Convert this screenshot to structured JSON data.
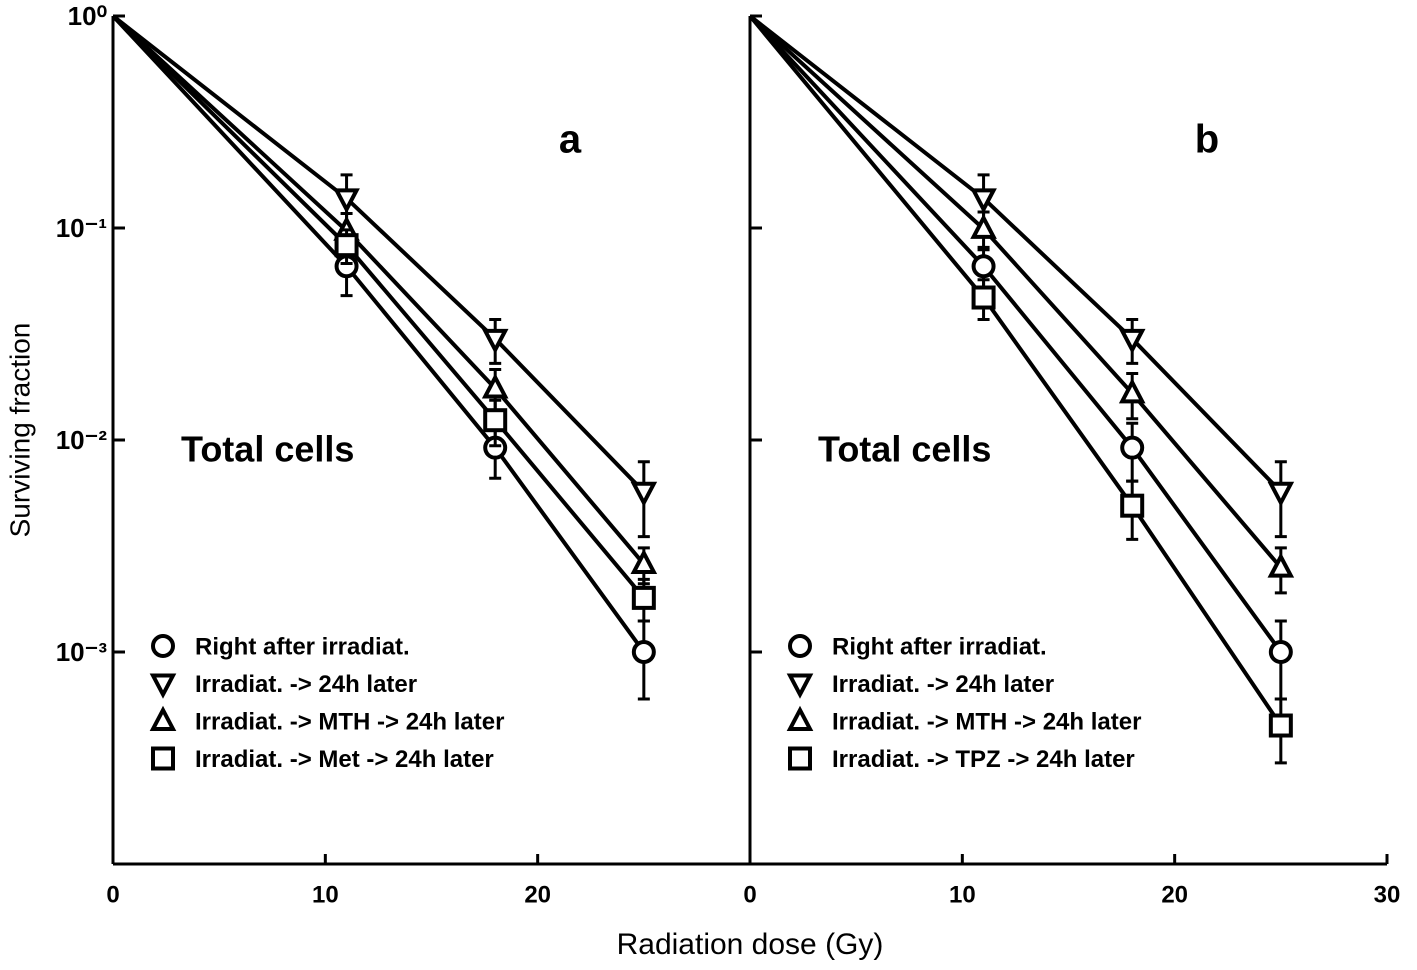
{
  "chart_data": [
    {
      "type": "line",
      "panel_label": "a",
      "annotation": "Total cells",
      "ylabel": "Surviving fraction",
      "xlabel": "Radiation dose (Gy)",
      "log_y": true,
      "xlim": [
        0,
        30
      ],
      "ylim": [
        0.0001,
        1
      ],
      "xticks": [
        0,
        10,
        20
      ],
      "yticks": [
        {
          "value": 1,
          "label": "10⁰"
        },
        {
          "value": 0.1,
          "label": "10⁻¹"
        },
        {
          "value": 0.01,
          "label": "10⁻²"
        },
        {
          "value": 0.001,
          "label": "10⁻³"
        }
      ],
      "x": [
        0,
        11,
        18,
        25
      ],
      "series": [
        {
          "name": "Right after irradiat.",
          "marker": "circle",
          "color": "#000000",
          "values": [
            1,
            0.066,
            0.0092,
            0.001
          ],
          "errors": [
            null,
            0.018,
            0.0026,
            0.0004
          ]
        },
        {
          "name": "Irradiat. -> 24h later",
          "marker": "triangle-down",
          "color": "#000000",
          "values": [
            1,
            0.138,
            0.03,
            0.0057
          ],
          "errors": [
            null,
            0.04,
            0.007,
            0.0022
          ]
        },
        {
          "name": "Irradiat. -> MTH -> 24h later",
          "marker": "triangle-up",
          "color": "#000000",
          "values": [
            1,
            0.097,
            0.0175,
            0.0026
          ],
          "errors": [
            null,
            0.02,
            0.004,
            0.0005
          ]
        },
        {
          "name": "Irradiat. -> Met -> 24h later",
          "marker": "square",
          "color": "#000000",
          "values": [
            1,
            0.083,
            0.0124,
            0.0018
          ],
          "errors": [
            null,
            0.015,
            0.003,
            0.0004
          ]
        }
      ]
    },
    {
      "type": "line",
      "panel_label": "b",
      "annotation": "Total cells",
      "log_y": true,
      "xlim": [
        0,
        30
      ],
      "ylim": [
        0.0001,
        1
      ],
      "xticks": [
        0,
        10,
        20,
        30
      ],
      "x": [
        0,
        11,
        18,
        25
      ],
      "series": [
        {
          "name": "Right after irradiat.",
          "marker": "circle",
          "color": "#000000",
          "values": [
            1,
            0.066,
            0.0092,
            0.001
          ],
          "errors": [
            null,
            0.015,
            0.0028,
            0.0004
          ]
        },
        {
          "name": "Irradiat. -> 24h later",
          "marker": "triangle-down",
          "color": "#000000",
          "values": [
            1,
            0.138,
            0.03,
            0.0057
          ],
          "errors": [
            null,
            0.04,
            0.007,
            0.0022
          ]
        },
        {
          "name": "Irradiat. -> MTH -> 24h later",
          "marker": "triangle-up",
          "color": "#000000",
          "values": [
            1,
            0.099,
            0.0166,
            0.0025
          ],
          "errors": [
            null,
            0.02,
            0.004,
            0.0006
          ]
        },
        {
          "name": "Irradiat. -> TPZ -> 24h later",
          "marker": "square",
          "color": "#000000",
          "values": [
            1,
            0.047,
            0.0049,
            0.00045
          ],
          "errors": [
            null,
            0.01,
            0.0015,
            0.00015
          ]
        }
      ]
    }
  ]
}
